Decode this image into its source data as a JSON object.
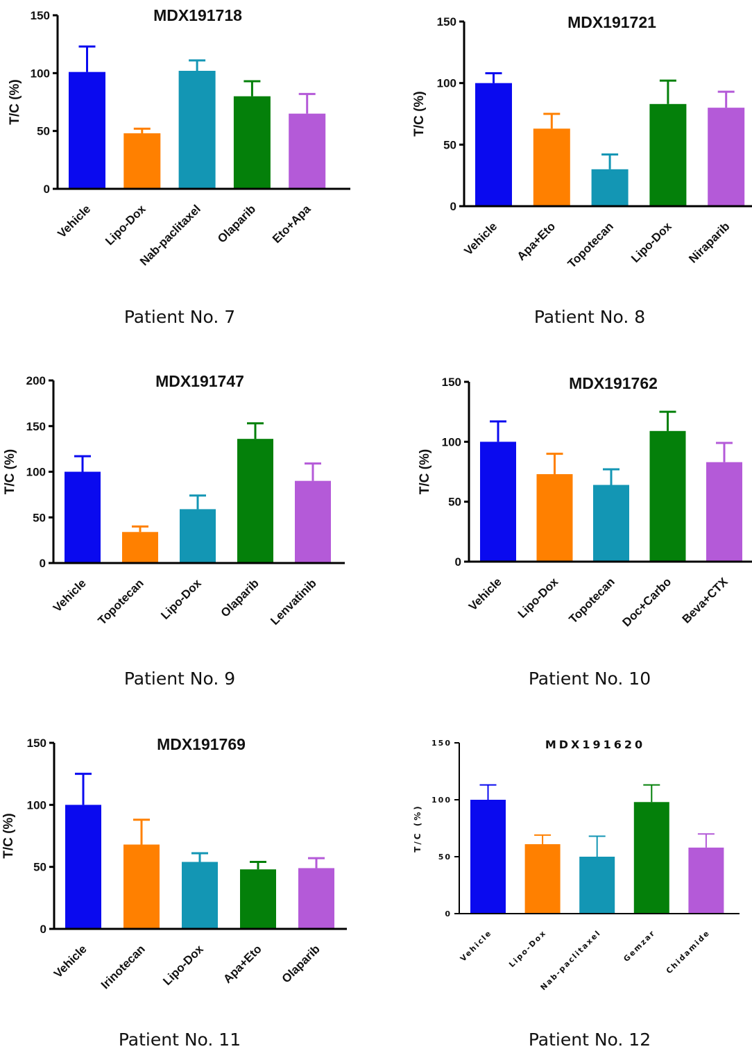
{
  "colors": {
    "Vehicle": "#0a0aef",
    "orange": "#ff8000",
    "teal": "#1396b4",
    "green": "#04800a",
    "purple": "#b45ad8"
  },
  "chart_data": [
    {
      "type": "bar",
      "title": "MDX191718",
      "caption": "Patient No. 7",
      "ylabel": "T/C (%)",
      "ylim": [
        0,
        150
      ],
      "yticks": [
        "0",
        "50",
        "100",
        "150"
      ],
      "categories": [
        "Vehicle",
        "Lipo-Dox",
        "Nab-paclitaxel",
        "Olaparib",
        "Eto+Apa"
      ],
      "values": [
        101,
        48,
        102,
        80,
        65
      ],
      "error": [
        22,
        4,
        9,
        13,
        17
      ],
      "colors": [
        "#0a0aef",
        "#ff8000",
        "#1396b4",
        "#04800a",
        "#b45ad8"
      ]
    },
    {
      "type": "bar",
      "title": "MDX191721",
      "caption": "Patient No. 8",
      "ylabel": "T/C (%)",
      "ylim": [
        0,
        150
      ],
      "yticks": [
        "0",
        "50",
        "100",
        "150"
      ],
      "categories": [
        "Vehicle",
        "Apa+Eto",
        "Topotecan",
        "Lipo-Dox",
        "Niraparib"
      ],
      "values": [
        100,
        63,
        30,
        83,
        80
      ],
      "error": [
        8,
        12,
        12,
        19,
        13
      ],
      "colors": [
        "#0a0aef",
        "#ff8000",
        "#1396b4",
        "#04800a",
        "#b45ad8"
      ]
    },
    {
      "type": "bar",
      "title": "MDX191747",
      "caption": "Patient No. 9",
      "ylabel": "T/C (%)",
      "ylim": [
        0,
        200
      ],
      "yticks": [
        "0",
        "50",
        "100",
        "150",
        "200"
      ],
      "categories": [
        "Vehicle",
        "Topotecan",
        "Lipo-Dox",
        "Olaparib",
        "Lenvatinib"
      ],
      "values": [
        100,
        34,
        59,
        136,
        90
      ],
      "error": [
        17,
        6,
        15,
        17,
        19
      ],
      "colors": [
        "#0a0aef",
        "#ff8000",
        "#1396b4",
        "#04800a",
        "#b45ad8"
      ]
    },
    {
      "type": "bar",
      "title": "MDX191762",
      "caption": "Patient No. 10",
      "ylabel": "T/C (%)",
      "ylim": [
        0,
        150
      ],
      "yticks": [
        "0",
        "50",
        "100",
        "150"
      ],
      "categories": [
        "Vehicle",
        "Lipo-Dox",
        "Topotecan",
        "Doc+Carbo",
        "Beva+CTX"
      ],
      "values": [
        100,
        73,
        64,
        109,
        83
      ],
      "error": [
        17,
        17,
        13,
        16,
        16
      ],
      "colors": [
        "#0a0aef",
        "#ff8000",
        "#1396b4",
        "#04800a",
        "#b45ad8"
      ]
    },
    {
      "type": "bar",
      "title": "MDX191769",
      "caption": "Patient No. 11",
      "ylabel": "T/C (%)",
      "ylim": [
        0,
        150
      ],
      "yticks": [
        "0",
        "50",
        "100",
        "150"
      ],
      "categories": [
        "Vehicle",
        "Irinotecan",
        "Lipo-Dox",
        "Apa+Eto",
        "Olaparib"
      ],
      "values": [
        100,
        68,
        54,
        48,
        49
      ],
      "error": [
        25,
        20,
        7,
        6,
        8
      ],
      "colors": [
        "#0a0aef",
        "#ff8000",
        "#1396b4",
        "#04800a",
        "#b45ad8"
      ]
    },
    {
      "type": "bar",
      "title": "MDX191620",
      "caption": "Patient No. 12",
      "ylabel": "T/C (%)",
      "ylim": [
        0,
        150
      ],
      "yticks": [
        "0",
        "50",
        "100",
        "150"
      ],
      "categories": [
        "Vehicle",
        "Lipo-Dox",
        "Nab-paclitaxel",
        "Gemzar",
        "Chidamide"
      ],
      "values": [
        100,
        61,
        50,
        98,
        58
      ],
      "error": [
        13,
        8,
        18,
        15,
        12
      ],
      "colors": [
        "#0a0aef",
        "#ff8000",
        "#1396b4",
        "#04800a",
        "#b45ad8"
      ]
    }
  ]
}
